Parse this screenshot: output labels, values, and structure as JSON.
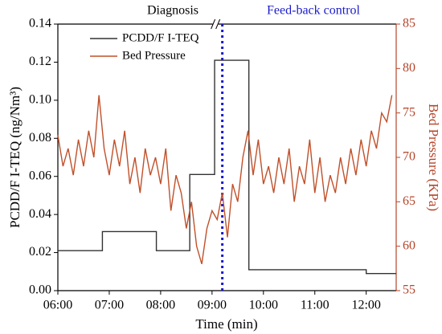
{
  "chart_data": {
    "type": "line",
    "annotations": [
      "Diagnosis",
      "Feed-back control"
    ],
    "xlabel": "Time (min)",
    "ylabel": "PCDD/F I-TEQ (ng/Nm³)",
    "y2label": "Bed Pressure (KPa)",
    "xlim": [
      360,
      755
    ],
    "xticks": [
      {
        "value": 360,
        "label": "06:00"
      },
      {
        "value": 420,
        "label": "07:00"
      },
      {
        "value": 480,
        "label": "08:00"
      },
      {
        "value": 540,
        "label": "09:00"
      },
      {
        "value": 600,
        "label": "10:00"
      },
      {
        "value": 660,
        "label": "11:00"
      },
      {
        "value": 720,
        "label": "12:00"
      }
    ],
    "ylim": [
      0,
      0.14
    ],
    "yticks": [
      {
        "value": 0,
        "label": "0.00"
      },
      0.02,
      0.04,
      0.06,
      0.08,
      {
        "value": 0.1,
        "label": "0.10"
      },
      0.12,
      0.14
    ],
    "y2lim": [
      55,
      85
    ],
    "y2ticks": [
      55,
      60,
      65,
      70,
      75,
      80,
      85
    ],
    "y2color": "#b5452a",
    "vline": {
      "x": 552,
      "color": "#1a1acc"
    },
    "legend": "upper left",
    "series": [
      {
        "name": "PCDD/F I-TEQ",
        "color": "#333333",
        "drawstyle": "steps-post",
        "x": [
          360,
          412,
          475,
          514,
          543,
          583,
          720,
          755
        ],
        "values": [
          0.021,
          0.031,
          0.021,
          0.061,
          0.121,
          0.011,
          0.009,
          0.009
        ]
      },
      {
        "name": "Bed Pressure",
        "color": "#c0502a",
        "axis": "y2",
        "x": [
          360,
          366,
          372,
          378,
          384,
          390,
          396,
          402,
          408,
          414,
          420,
          426,
          432,
          438,
          444,
          450,
          456,
          462,
          468,
          474,
          480,
          486,
          492,
          498,
          504,
          510,
          516,
          522,
          528,
          534,
          540,
          546,
          552,
          558,
          564,
          570,
          576,
          582,
          588,
          594,
          600,
          606,
          612,
          618,
          624,
          630,
          636,
          642,
          648,
          654,
          660,
          666,
          672,
          678,
          684,
          690,
          696,
          702,
          708,
          714,
          720,
          726,
          732,
          738,
          744,
          750
        ],
        "values": [
          72.5,
          69,
          71,
          68,
          72,
          69,
          73,
          70,
          77,
          71,
          68,
          72,
          69,
          73,
          67,
          70,
          66,
          71,
          68,
          70,
          67,
          71,
          64,
          68,
          66,
          62,
          65,
          60,
          58,
          62,
          64,
          63,
          66,
          61,
          67,
          65,
          70,
          73,
          68,
          72,
          67,
          69,
          66,
          70,
          67,
          71,
          65,
          69,
          67,
          72,
          66,
          70,
          65,
          68,
          66,
          70,
          67,
          71,
          68,
          72,
          69,
          73,
          71,
          75,
          74,
          77
        ]
      }
    ]
  }
}
